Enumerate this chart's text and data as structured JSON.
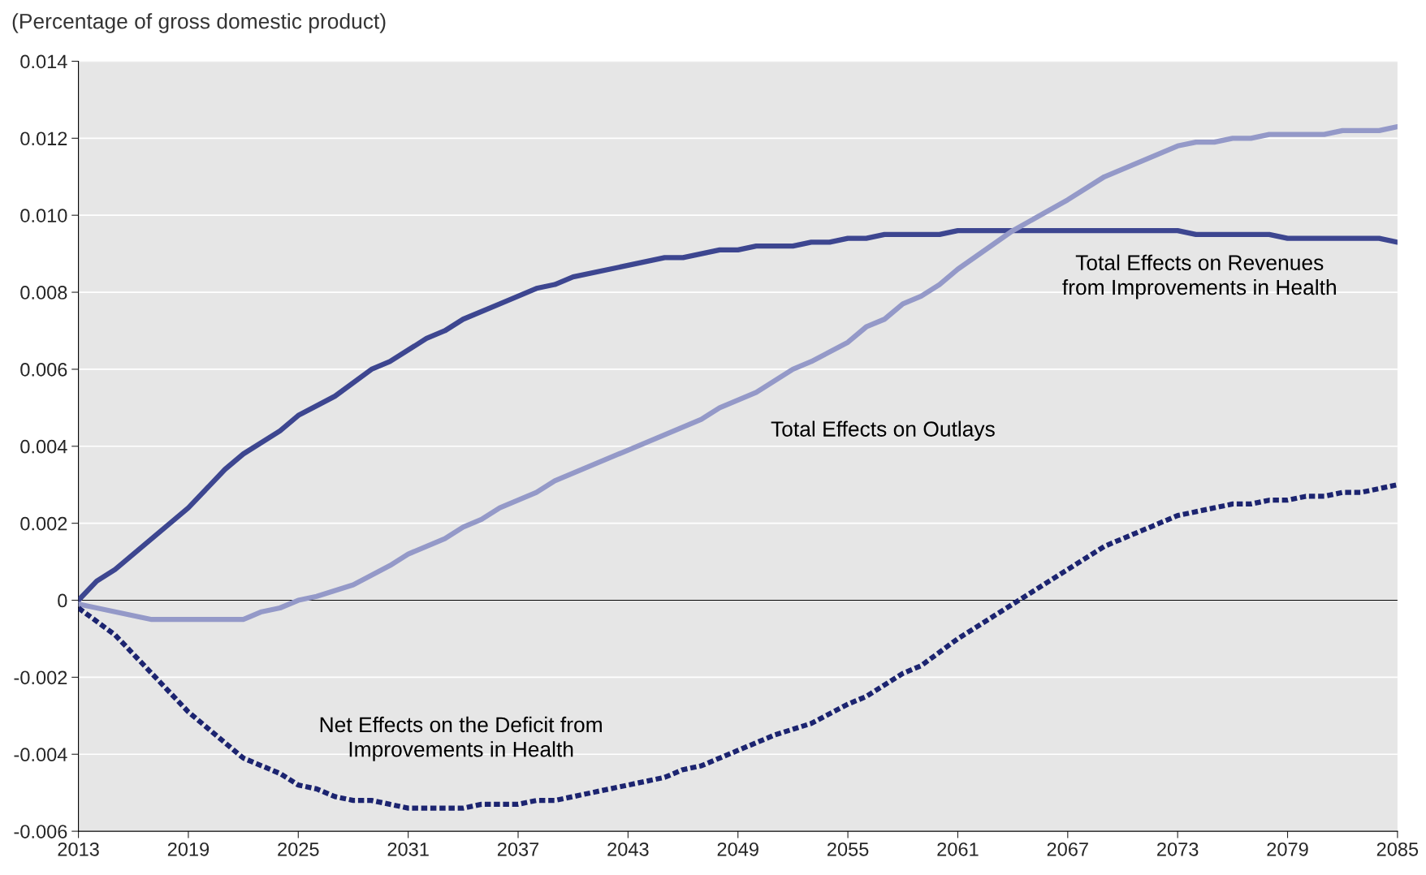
{
  "chart_data": {
    "type": "line",
    "ylabel": "(Percentage of gross domestic product)",
    "xlim": [
      2013,
      2085
    ],
    "xticks": [
      2013,
      2019,
      2025,
      2031,
      2037,
      2043,
      2049,
      2055,
      2061,
      2067,
      2073,
      2079,
      2085
    ],
    "ylim": [
      -0.006,
      0.014
    ],
    "yticks": [
      {
        "value": -0.006,
        "label": "-0.006"
      },
      {
        "value": -0.004,
        "label": "-0.004"
      },
      {
        "value": -0.002,
        "label": "-0.002"
      },
      {
        "value": 0,
        "label": "0"
      },
      {
        "value": 0.002,
        "label": "0.002"
      },
      {
        "value": 0.004,
        "label": "0.004"
      },
      {
        "value": 0.006,
        "label": "0.006"
      },
      {
        "value": 0.008,
        "label": "0.008"
      },
      {
        "value": 0.01,
        "label": "0.010"
      },
      {
        "value": 0.012,
        "label": "0.012"
      },
      {
        "value": 0.014,
        "label": "0.014"
      }
    ],
    "grid": "y",
    "legend": false,
    "ref_lines": [
      {
        "axis": "y",
        "value": 0,
        "color": "#000000"
      }
    ],
    "series": [
      {
        "name": "Total Effects on Revenues\nfrom Improvements in Health",
        "color": "#3d4690",
        "line_style": "solid",
        "x": [
          2013,
          2014,
          2015,
          2017,
          2019,
          2021,
          2022,
          2024,
          2025,
          2027,
          2029,
          2030,
          2032,
          2033,
          2034,
          2036,
          2038,
          2039,
          2040,
          2043,
          2045,
          2046,
          2048,
          2049,
          2050,
          2052,
          2053,
          2054,
          2055,
          2056,
          2057,
          2060,
          2061,
          2073,
          2074,
          2078,
          2079,
          2084,
          2085
        ],
        "values": [
          0,
          0.0005,
          0.0008,
          0.0016,
          0.0024,
          0.0034,
          0.0038,
          0.0044,
          0.0048,
          0.0053,
          0.006,
          0.0062,
          0.0068,
          0.007,
          0.0073,
          0.0077,
          0.0081,
          0.0082,
          0.0084,
          0.0087,
          0.0089,
          0.0089,
          0.0091,
          0.0091,
          0.0092,
          0.0092,
          0.0093,
          0.0093,
          0.0094,
          0.0094,
          0.0095,
          0.0095,
          0.0096,
          0.0096,
          0.0095,
          0.0095,
          0.0094,
          0.0094,
          0.0093
        ]
      },
      {
        "name": "Total Effects on Outlays",
        "color": "#9499c8",
        "line_style": "solid",
        "x": [
          2013,
          2015,
          2017,
          2022,
          2023,
          2024,
          2025,
          2026,
          2028,
          2030,
          2031,
          2033,
          2034,
          2035,
          2036,
          2038,
          2039,
          2043,
          2047,
          2048,
          2050,
          2052,
          2053,
          2055,
          2056,
          2057,
          2058,
          2059,
          2060,
          2061,
          2064,
          2067,
          2069,
          2071,
          2073,
          2074,
          2075,
          2076,
          2077,
          2078,
          2081,
          2082,
          2084,
          2085
        ],
        "values": [
          -0.0001,
          -0.0003,
          -0.0005,
          -0.0005,
          -0.0003,
          -0.0002,
          0,
          0.0001,
          0.0004,
          0.0009,
          0.0012,
          0.0016,
          0.0019,
          0.0021,
          0.0024,
          0.0028,
          0.0031,
          0.0039,
          0.0047,
          0.005,
          0.0054,
          0.006,
          0.0062,
          0.0067,
          0.0071,
          0.0073,
          0.0077,
          0.0079,
          0.0082,
          0.0086,
          0.0096,
          0.0104,
          0.011,
          0.0114,
          0.0118,
          0.0119,
          0.0119,
          0.012,
          0.012,
          0.0121,
          0.0121,
          0.0122,
          0.0122,
          0.0123
        ]
      },
      {
        "name": "Net Effects on the Deficit from\nImprovements in Health",
        "color": "#1c2470",
        "line_style": "dotted",
        "x": [
          2013,
          2015,
          2017,
          2019,
          2021,
          2022,
          2024,
          2025,
          2026,
          2027,
          2028,
          2029,
          2030,
          2031,
          2034,
          2035,
          2037,
          2038,
          2039,
          2041,
          2043,
          2045,
          2046,
          2047,
          2049,
          2051,
          2053,
          2055,
          2056,
          2058,
          2059,
          2061,
          2063,
          2065,
          2067,
          2069,
          2071,
          2073,
          2075,
          2076,
          2077,
          2078,
          2079,
          2080,
          2081,
          2082,
          2083,
          2085
        ],
        "values": [
          -0.0002,
          -0.0009,
          -0.0019,
          -0.0029,
          -0.0037,
          -0.0041,
          -0.0045,
          -0.0048,
          -0.0049,
          -0.0051,
          -0.0052,
          -0.0052,
          -0.0053,
          -0.0054,
          -0.0054,
          -0.0053,
          -0.0053,
          -0.0052,
          -0.0052,
          -0.005,
          -0.0048,
          -0.0046,
          -0.0044,
          -0.0043,
          -0.0039,
          -0.0035,
          -0.0032,
          -0.0027,
          -0.0025,
          -0.0019,
          -0.0017,
          -0.001,
          -0.0004,
          0.0002,
          0.0008,
          0.0014,
          0.0018,
          0.0022,
          0.0024,
          0.0025,
          0.0025,
          0.0026,
          0.0026,
          0.0027,
          0.0027,
          0.0028,
          0.0028,
          0.003
        ]
      }
    ]
  }
}
